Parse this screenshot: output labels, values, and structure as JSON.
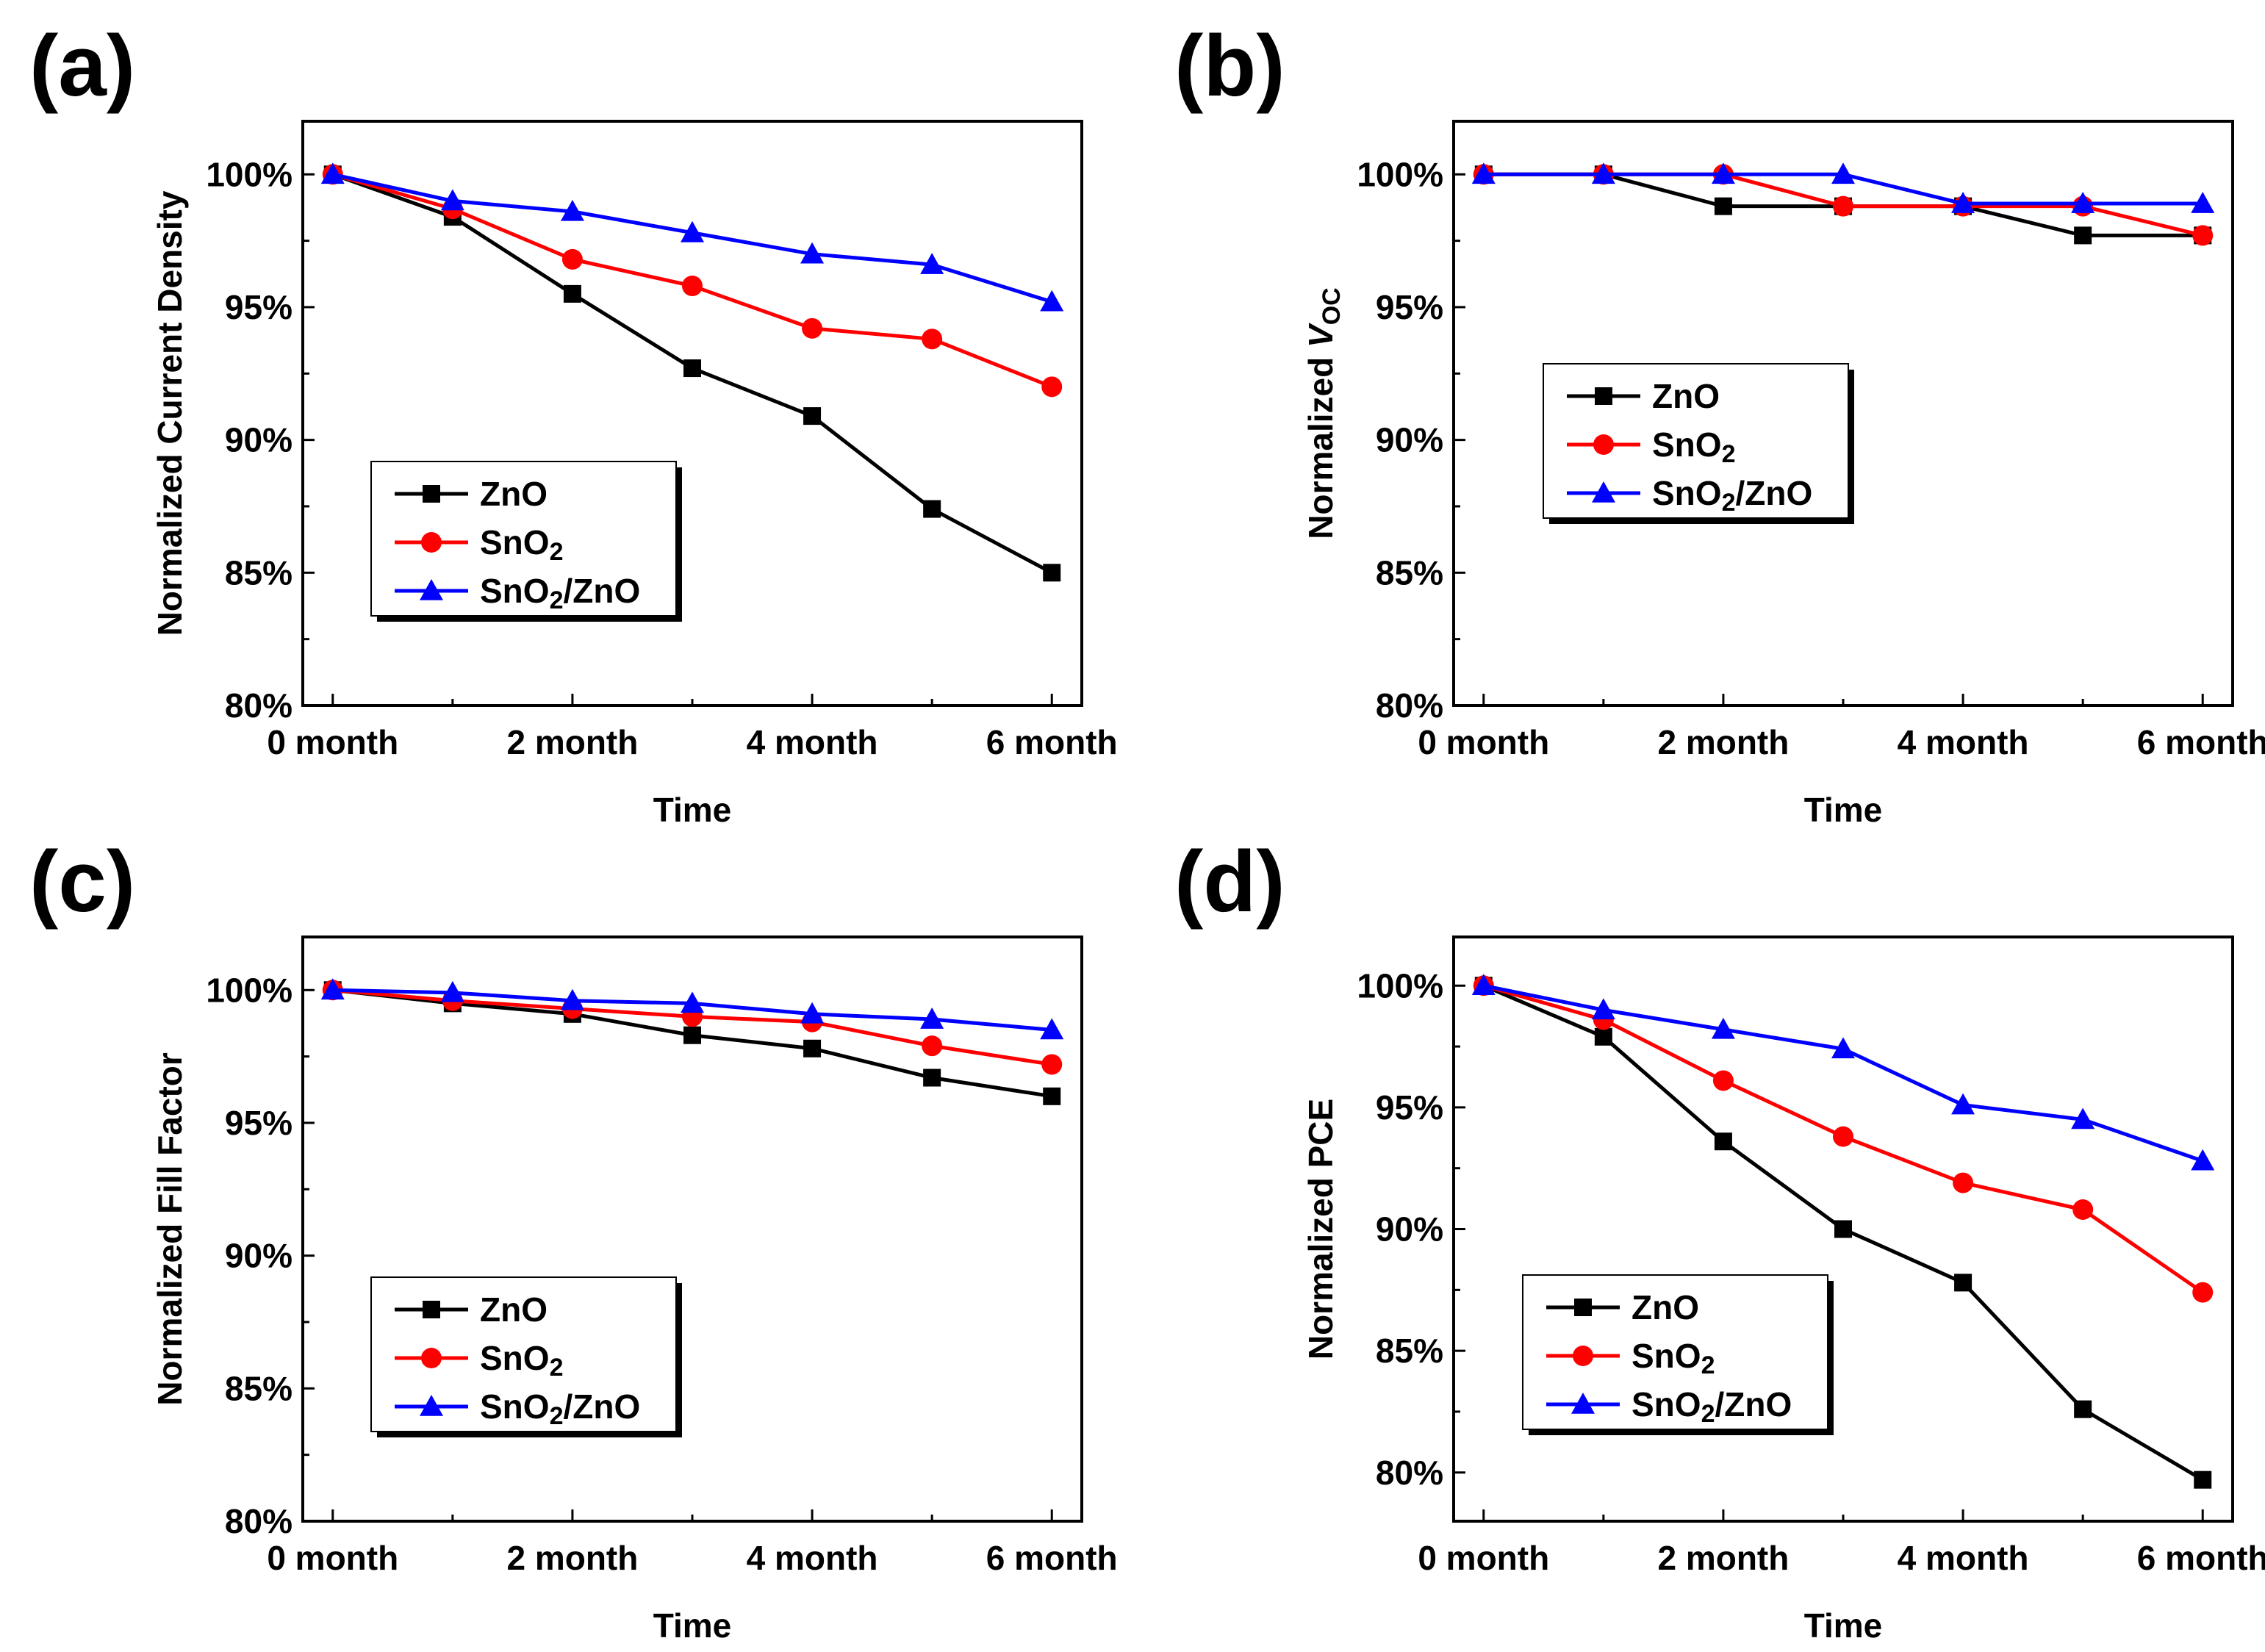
{
  "chart_data": [
    {
      "type": "line",
      "panel_label": "(a)",
      "x": [
        0,
        1,
        2,
        3,
        4,
        5,
        6
      ],
      "x_tick_labels": [
        "0 month",
        "2 month",
        "4 month",
        "6 month"
      ],
      "x_tick_values": [
        0,
        2,
        4,
        6
      ],
      "xlabel": "Time",
      "ylabel": {
        "pre": "Normalized Current Density",
        "italic": "",
        "sub": ""
      },
      "ylim": [
        80,
        102
      ],
      "y_tick_values": [
        80,
        85,
        90,
        95,
        100
      ],
      "y_tick_labels": [
        "80%",
        "85%",
        "90%",
        "95%",
        "100%"
      ],
      "legend_position": "lower-left",
      "series": [
        {
          "name": "ZnO",
          "base": "ZnO",
          "sub": "",
          "tail": "",
          "color": "#000000",
          "marker": "square",
          "values": [
            100,
            98.4,
            95.5,
            92.7,
            90.9,
            87.4,
            85.0
          ]
        },
        {
          "name": "SnO2",
          "base": "SnO",
          "sub": "2",
          "tail": "",
          "color": "#ff0000",
          "marker": "circle",
          "values": [
            100,
            98.7,
            96.8,
            95.8,
            94.2,
            93.8,
            92.0
          ]
        },
        {
          "name": "SnO2/ZnO",
          "base": "SnO",
          "sub": "2",
          "tail": "/ZnO",
          "color": "#0000ff",
          "marker": "triangle",
          "values": [
            100,
            99.0,
            98.6,
            97.8,
            97.0,
            96.6,
            95.2
          ]
        }
      ]
    },
    {
      "type": "line",
      "panel_label": "(b)",
      "x": [
        0,
        1,
        2,
        3,
        4,
        5,
        6
      ],
      "x_tick_labels": [
        "0 month",
        "2 month",
        "4 month",
        "6 month"
      ],
      "x_tick_values": [
        0,
        2,
        4,
        6
      ],
      "xlabel": "Time",
      "ylabel": {
        "pre": "Normalized ",
        "italic": "V",
        "sub": "OC"
      },
      "ylim": [
        80,
        102
      ],
      "y_tick_values": [
        80,
        85,
        90,
        95,
        100
      ],
      "y_tick_labels": [
        "80%",
        "85%",
        "90%",
        "95%",
        "100%"
      ],
      "legend_position": "center-left",
      "series": [
        {
          "name": "ZnO",
          "base": "ZnO",
          "sub": "",
          "tail": "",
          "color": "#000000",
          "marker": "square",
          "values": [
            100,
            100,
            98.8,
            98.8,
            98.8,
            97.7,
            97.7
          ]
        },
        {
          "name": "SnO2",
          "base": "SnO",
          "sub": "2",
          "tail": "",
          "color": "#ff0000",
          "marker": "circle",
          "values": [
            100,
            100,
            100,
            98.8,
            98.8,
            98.8,
            97.7
          ]
        },
        {
          "name": "SnO2/ZnO",
          "base": "SnO",
          "sub": "2",
          "tail": "/ZnO",
          "color": "#0000ff",
          "marker": "triangle",
          "values": [
            100,
            100,
            100,
            100,
            98.9,
            98.9,
            98.9
          ]
        }
      ]
    },
    {
      "type": "line",
      "panel_label": "(c)",
      "x": [
        0,
        1,
        2,
        3,
        4,
        5,
        6
      ],
      "x_tick_labels": [
        "0 month",
        "2 month",
        "4 month",
        "6 month"
      ],
      "x_tick_values": [
        0,
        2,
        4,
        6
      ],
      "xlabel": "Time",
      "ylabel": {
        "pre": "Normalized Fill Factor",
        "italic": "",
        "sub": ""
      },
      "ylim": [
        80,
        102
      ],
      "y_tick_values": [
        80,
        85,
        90,
        95,
        100
      ],
      "y_tick_labels": [
        "80%",
        "85%",
        "90%",
        "95%",
        "100%"
      ],
      "legend_position": "lower-left",
      "series": [
        {
          "name": "ZnO",
          "base": "ZnO",
          "sub": "",
          "tail": "",
          "color": "#000000",
          "marker": "square",
          "values": [
            100,
            99.5,
            99.1,
            98.3,
            97.8,
            96.7,
            96.0
          ]
        },
        {
          "name": "SnO2",
          "base": "SnO",
          "sub": "2",
          "tail": "",
          "color": "#ff0000",
          "marker": "circle",
          "values": [
            100,
            99.6,
            99.3,
            99.0,
            98.8,
            97.9,
            97.2
          ]
        },
        {
          "name": "SnO2/ZnO",
          "base": "SnO",
          "sub": "2",
          "tail": "/ZnO",
          "color": "#0000ff",
          "marker": "triangle",
          "values": [
            100,
            99.9,
            99.6,
            99.5,
            99.1,
            98.9,
            98.5
          ]
        }
      ]
    },
    {
      "type": "line",
      "panel_label": "(d)",
      "x": [
        0,
        1,
        2,
        3,
        4,
        5,
        6
      ],
      "x_tick_labels": [
        "0 month",
        "2 month",
        "4 month",
        "6 month"
      ],
      "x_tick_values": [
        0,
        2,
        4,
        6
      ],
      "xlabel": "Time",
      "ylabel": {
        "pre": "Normalized PCE",
        "italic": "",
        "sub": ""
      },
      "ylim": [
        78,
        102
      ],
      "y_tick_values": [
        80,
        85,
        90,
        95,
        100
      ],
      "y_tick_labels": [
        "80%",
        "85%",
        "90%",
        "95%",
        "100%"
      ],
      "legend_position": "lower-left",
      "series": [
        {
          "name": "ZnO",
          "base": "ZnO",
          "sub": "",
          "tail": "",
          "color": "#000000",
          "marker": "square",
          "values": [
            100,
            97.9,
            93.6,
            90.0,
            87.8,
            82.6,
            79.7
          ]
        },
        {
          "name": "SnO2",
          "base": "SnO",
          "sub": "2",
          "tail": "",
          "color": "#ff0000",
          "marker": "circle",
          "values": [
            100,
            98.6,
            96.1,
            93.8,
            91.9,
            90.8,
            87.4
          ]
        },
        {
          "name": "SnO2/ZnO",
          "base": "SnO",
          "sub": "2",
          "tail": "/ZnO",
          "color": "#0000ff",
          "marker": "triangle",
          "values": [
            100,
            99.0,
            98.2,
            97.4,
            95.1,
            94.5,
            92.8
          ]
        }
      ]
    }
  ]
}
